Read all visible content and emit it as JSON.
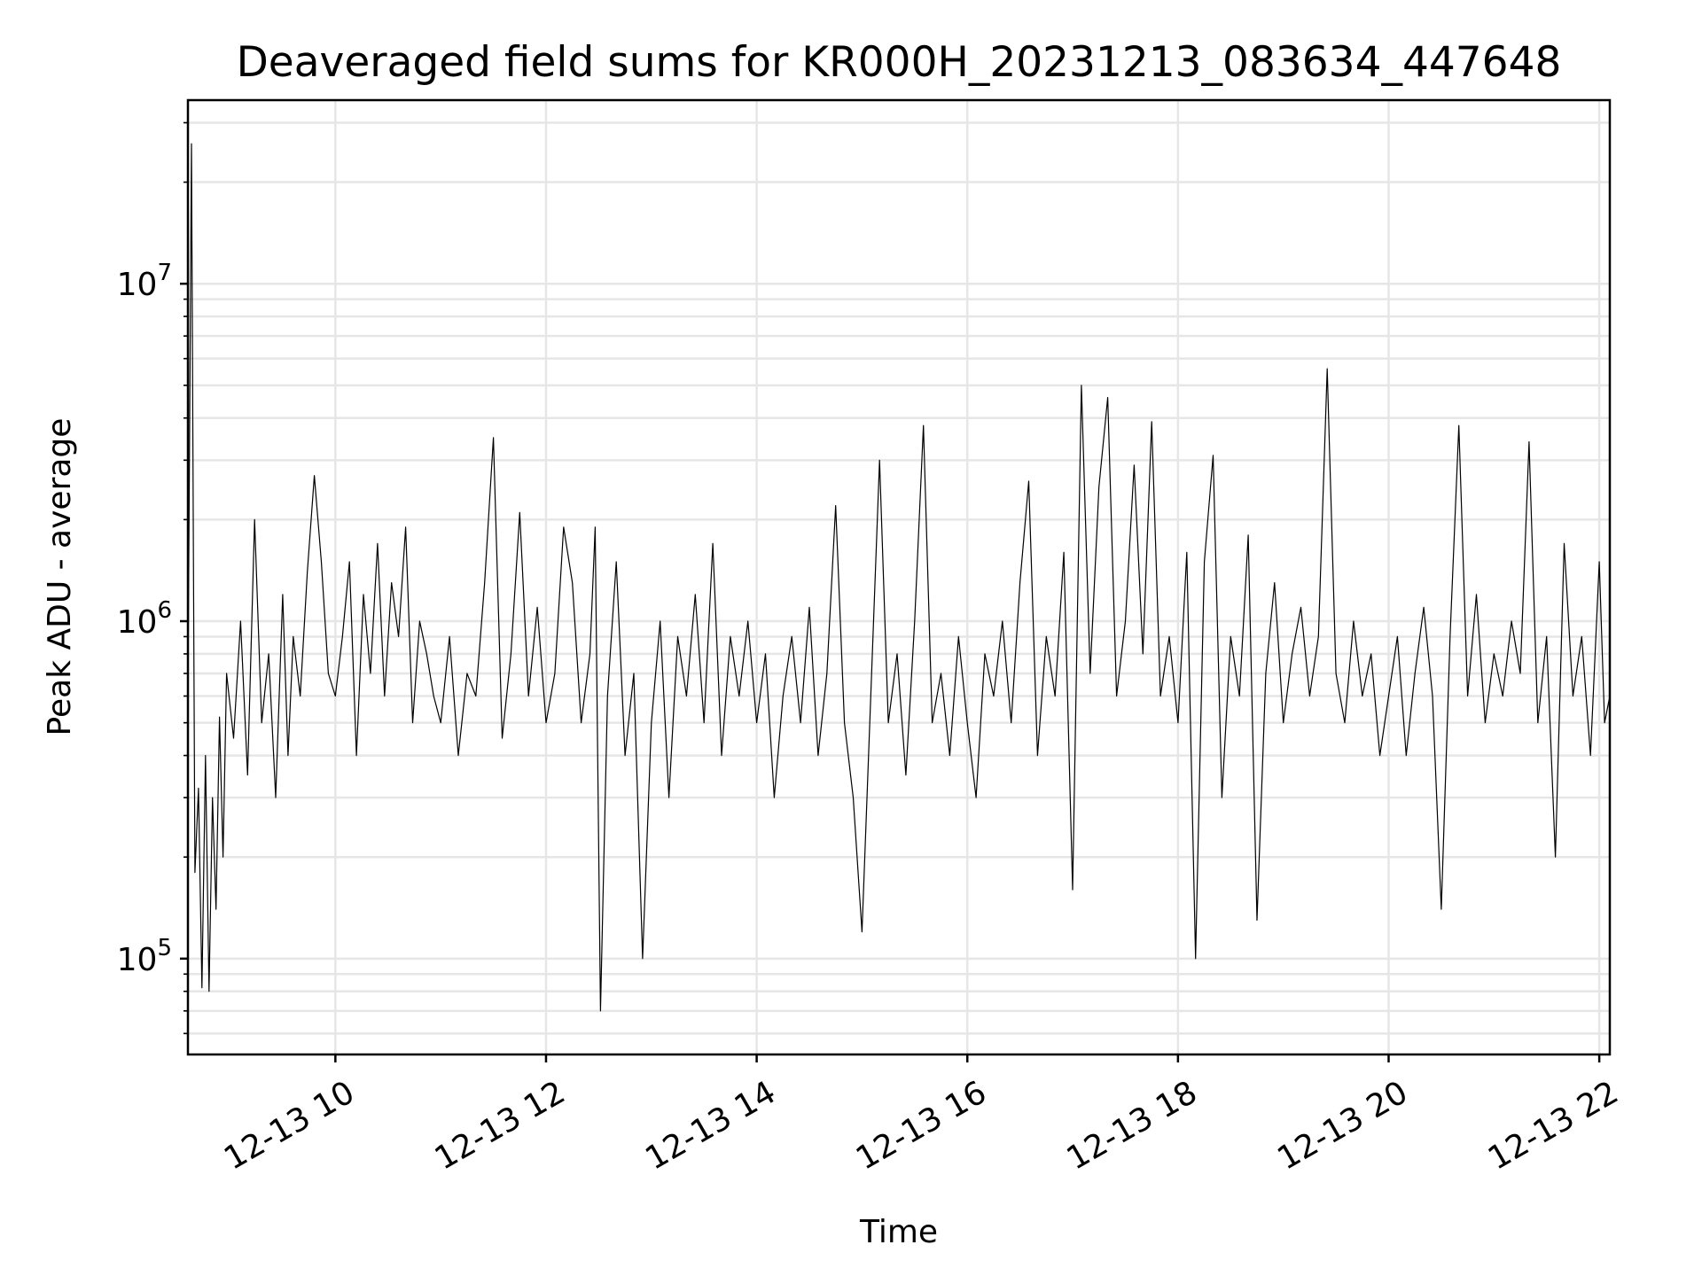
{
  "chart_data": {
    "type": "line",
    "title": "Deaveraged field sums for KR000H_20231213_083634_447648",
    "xlabel": "Time",
    "ylabel": "Peak ADU - average",
    "yscale": "log",
    "grid": true,
    "line_color": "#000000",
    "x_start": "2023-12-13 08:36",
    "x_end": "2023-12-13 22:06",
    "xlim": [
      "2023-12-13 08:36",
      "2023-12-13 22:06"
    ],
    "ylim": [
      52000,
      35000000
    ],
    "x_ticks": [
      {
        "value": "2023-12-13 10:00",
        "label": "12-13 10"
      },
      {
        "value": "2023-12-13 12:00",
        "label": "12-13 12"
      },
      {
        "value": "2023-12-13 14:00",
        "label": "12-13 14"
      },
      {
        "value": "2023-12-13 16:00",
        "label": "12-13 16"
      },
      {
        "value": "2023-12-13 18:00",
        "label": "12-13 18"
      },
      {
        "value": "2023-12-13 20:00",
        "label": "12-13 20"
      },
      {
        "value": "2023-12-13 22:00",
        "label": "12-13 22"
      }
    ],
    "y_ticks": [
      {
        "value": 100000,
        "base": "10",
        "exp": "5"
      },
      {
        "value": 1000000,
        "base": "10",
        "exp": "6"
      },
      {
        "value": 10000000,
        "base": "10",
        "exp": "7"
      }
    ],
    "series": [
      {
        "x": [
          "2023-12-13 08:36",
          "2023-12-13 08:38",
          "2023-12-13 08:40",
          "2023-12-13 08:42",
          "2023-12-13 08:44",
          "2023-12-13 08:46",
          "2023-12-13 08:48",
          "2023-12-13 08:50",
          "2023-12-13 08:52",
          "2023-12-13 08:54",
          "2023-12-13 08:56",
          "2023-12-13 08:58",
          "2023-12-13 09:02",
          "2023-12-13 09:06",
          "2023-12-13 09:10",
          "2023-12-13 09:14",
          "2023-12-13 09:18",
          "2023-12-13 09:22",
          "2023-12-13 09:26",
          "2023-12-13 09:30",
          "2023-12-13 09:33",
          "2023-12-13 09:36",
          "2023-12-13 09:40",
          "2023-12-13 09:44",
          "2023-12-13 09:48",
          "2023-12-13 09:52",
          "2023-12-13 09:56",
          "2023-12-13 10:00",
          "2023-12-13 10:04",
          "2023-12-13 10:08",
          "2023-12-13 10:12",
          "2023-12-13 10:16",
          "2023-12-13 10:20",
          "2023-12-13 10:24",
          "2023-12-13 10:28",
          "2023-12-13 10:32",
          "2023-12-13 10:36",
          "2023-12-13 10:40",
          "2023-12-13 10:44",
          "2023-12-13 10:48",
          "2023-12-13 10:52",
          "2023-12-13 10:56",
          "2023-12-13 11:00",
          "2023-12-13 11:05",
          "2023-12-13 11:10",
          "2023-12-13 11:15",
          "2023-12-13 11:20",
          "2023-12-13 11:25",
          "2023-12-13 11:30",
          "2023-12-13 11:35",
          "2023-12-13 11:40",
          "2023-12-13 11:45",
          "2023-12-13 11:50",
          "2023-12-13 11:55",
          "2023-12-13 12:00",
          "2023-12-13 12:05",
          "2023-12-13 12:10",
          "2023-12-13 12:15",
          "2023-12-13 12:20",
          "2023-12-13 12:25",
          "2023-12-13 12:28",
          "2023-12-13 12:31",
          "2023-12-13 12:35",
          "2023-12-13 12:40",
          "2023-12-13 12:45",
          "2023-12-13 12:50",
          "2023-12-13 12:55",
          "2023-12-13 13:00",
          "2023-12-13 13:05",
          "2023-12-13 13:10",
          "2023-12-13 13:15",
          "2023-12-13 13:20",
          "2023-12-13 13:25",
          "2023-12-13 13:30",
          "2023-12-13 13:35",
          "2023-12-13 13:40",
          "2023-12-13 13:45",
          "2023-12-13 13:50",
          "2023-12-13 13:55",
          "2023-12-13 14:00",
          "2023-12-13 14:05",
          "2023-12-13 14:10",
          "2023-12-13 14:15",
          "2023-12-13 14:20",
          "2023-12-13 14:25",
          "2023-12-13 14:30",
          "2023-12-13 14:35",
          "2023-12-13 14:40",
          "2023-12-13 14:45",
          "2023-12-13 14:50",
          "2023-12-13 14:55",
          "2023-12-13 15:00",
          "2023-12-13 15:05",
          "2023-12-13 15:10",
          "2023-12-13 15:15",
          "2023-12-13 15:20",
          "2023-12-13 15:25",
          "2023-12-13 15:30",
          "2023-12-13 15:35",
          "2023-12-13 15:40",
          "2023-12-13 15:45",
          "2023-12-13 15:50",
          "2023-12-13 15:55",
          "2023-12-13 16:00",
          "2023-12-13 16:05",
          "2023-12-13 16:10",
          "2023-12-13 16:15",
          "2023-12-13 16:20",
          "2023-12-13 16:25",
          "2023-12-13 16:30",
          "2023-12-13 16:35",
          "2023-12-13 16:40",
          "2023-12-13 16:45",
          "2023-12-13 16:50",
          "2023-12-13 16:55",
          "2023-12-13 17:00",
          "2023-12-13 17:05",
          "2023-12-13 17:10",
          "2023-12-13 17:15",
          "2023-12-13 17:20",
          "2023-12-13 17:25",
          "2023-12-13 17:30",
          "2023-12-13 17:35",
          "2023-12-13 17:40",
          "2023-12-13 17:45",
          "2023-12-13 17:50",
          "2023-12-13 17:55",
          "2023-12-13 18:00",
          "2023-12-13 18:05",
          "2023-12-13 18:10",
          "2023-12-13 18:15",
          "2023-12-13 18:20",
          "2023-12-13 18:25",
          "2023-12-13 18:30",
          "2023-12-13 18:35",
          "2023-12-13 18:40",
          "2023-12-13 18:45",
          "2023-12-13 18:50",
          "2023-12-13 18:55",
          "2023-12-13 19:00",
          "2023-12-13 19:05",
          "2023-12-13 19:10",
          "2023-12-13 19:15",
          "2023-12-13 19:20",
          "2023-12-13 19:25",
          "2023-12-13 19:30",
          "2023-12-13 19:35",
          "2023-12-13 19:40",
          "2023-12-13 19:45",
          "2023-12-13 19:50",
          "2023-12-13 19:55",
          "2023-12-13 20:00",
          "2023-12-13 20:05",
          "2023-12-13 20:10",
          "2023-12-13 20:15",
          "2023-12-13 20:20",
          "2023-12-13 20:25",
          "2023-12-13 20:30",
          "2023-12-13 20:35",
          "2023-12-13 20:40",
          "2023-12-13 20:45",
          "2023-12-13 20:50",
          "2023-12-13 20:55",
          "2023-12-13 21:00",
          "2023-12-13 21:05",
          "2023-12-13 21:10",
          "2023-12-13 21:15",
          "2023-12-13 21:20",
          "2023-12-13 21:25",
          "2023-12-13 21:30",
          "2023-12-13 21:35",
          "2023-12-13 21:40",
          "2023-12-13 21:45",
          "2023-12-13 21:50",
          "2023-12-13 21:55",
          "2023-12-13 22:00",
          "2023-12-13 22:03",
          "2023-12-13 22:06"
        ],
        "y": [
          600000,
          26000000,
          180000,
          320000,
          82000,
          400000,
          80000,
          300000,
          140000,
          520000,
          200000,
          700000,
          450000,
          1000000,
          350000,
          2000000,
          500000,
          800000,
          300000,
          1200000,
          400000,
          900000,
          600000,
          1400000,
          2700000,
          1500000,
          700000,
          600000,
          900000,
          1500000,
          400000,
          1200000,
          700000,
          1700000,
          600000,
          1300000,
          900000,
          1900000,
          500000,
          1000000,
          800000,
          600000,
          500000,
          900000,
          400000,
          700000,
          600000,
          1300000,
          3500000,
          450000,
          800000,
          2100000,
          600000,
          1100000,
          500000,
          700000,
          1900000,
          1300000,
          500000,
          800000,
          1900000,
          70000,
          600000,
          1500000,
          400000,
          700000,
          100000,
          500000,
          1000000,
          300000,
          900000,
          600000,
          1200000,
          500000,
          1700000,
          400000,
          900000,
          600000,
          1000000,
          500000,
          800000,
          300000,
          600000,
          900000,
          500000,
          1100000,
          400000,
          700000,
          2200000,
          500000,
          300000,
          120000,
          600000,
          3000000,
          500000,
          800000,
          350000,
          1000000,
          3800000,
          500000,
          700000,
          400000,
          900000,
          500000,
          300000,
          800000,
          600000,
          1000000,
          500000,
          1300000,
          2600000,
          400000,
          900000,
          600000,
          1600000,
          160000,
          5000000,
          700000,
          2500000,
          4600000,
          600000,
          1000000,
          2900000,
          800000,
          3900000,
          600000,
          900000,
          500000,
          1600000,
          100000,
          1500000,
          3100000,
          300000,
          900000,
          600000,
          1800000,
          130000,
          700000,
          1300000,
          500000,
          800000,
          1100000,
          600000,
          900000,
          5600000,
          700000,
          500000,
          1000000,
          600000,
          800000,
          400000,
          600000,
          900000,
          400000,
          700000,
          1100000,
          600000,
          140000,
          900000,
          3800000,
          600000,
          1200000,
          500000,
          800000,
          600000,
          1000000,
          700000,
          3400000,
          500000,
          900000,
          200000,
          1700000,
          600000,
          900000,
          400000,
          1500000,
          500000,
          600000
        ]
      }
    ]
  }
}
